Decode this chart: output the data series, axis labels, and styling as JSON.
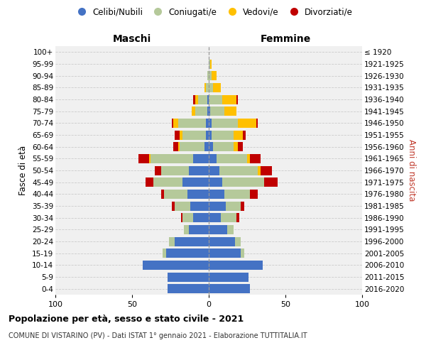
{
  "age_groups": [
    "0-4",
    "5-9",
    "10-14",
    "15-19",
    "20-24",
    "25-29",
    "30-34",
    "35-39",
    "40-44",
    "45-49",
    "50-54",
    "55-59",
    "60-64",
    "65-69",
    "70-74",
    "75-79",
    "80-84",
    "85-89",
    "90-94",
    "95-99",
    "100+"
  ],
  "birth_years": [
    "2016-2020",
    "2011-2015",
    "2006-2010",
    "2001-2005",
    "1996-2000",
    "1991-1995",
    "1986-1990",
    "1981-1985",
    "1976-1980",
    "1971-1975",
    "1966-1970",
    "1961-1965",
    "1956-1960",
    "1951-1955",
    "1946-1950",
    "1941-1945",
    "1936-1940",
    "1931-1935",
    "1926-1930",
    "1921-1925",
    "≤ 1920"
  ],
  "males": {
    "celibi": [
      27,
      27,
      43,
      28,
      22,
      13,
      10,
      12,
      14,
      17,
      13,
      10,
      3,
      2,
      2,
      1,
      1,
      0,
      0,
      0,
      0
    ],
    "coniugati": [
      0,
      0,
      0,
      2,
      4,
      3,
      7,
      10,
      15,
      19,
      18,
      28,
      16,
      15,
      18,
      8,
      6,
      2,
      1,
      0,
      0
    ],
    "vedovi": [
      0,
      0,
      0,
      0,
      0,
      0,
      0,
      0,
      0,
      0,
      0,
      1,
      1,
      2,
      3,
      2,
      2,
      1,
      0,
      0,
      0
    ],
    "divorziati": [
      0,
      0,
      0,
      0,
      0,
      0,
      1,
      2,
      2,
      5,
      4,
      7,
      3,
      3,
      1,
      0,
      1,
      0,
      0,
      0,
      0
    ]
  },
  "females": {
    "nubili": [
      27,
      26,
      35,
      21,
      17,
      12,
      8,
      11,
      10,
      9,
      7,
      5,
      3,
      2,
      2,
      1,
      0,
      0,
      0,
      0,
      0
    ],
    "coniugate": [
      0,
      0,
      0,
      2,
      4,
      4,
      10,
      10,
      17,
      27,
      25,
      20,
      13,
      14,
      17,
      9,
      9,
      3,
      2,
      1,
      0
    ],
    "vedove": [
      0,
      0,
      0,
      0,
      0,
      0,
      0,
      0,
      0,
      0,
      2,
      2,
      3,
      6,
      12,
      8,
      9,
      5,
      3,
      1,
      0
    ],
    "divorziate": [
      0,
      0,
      0,
      0,
      0,
      0,
      2,
      2,
      5,
      9,
      7,
      7,
      3,
      2,
      1,
      0,
      1,
      0,
      0,
      0,
      0
    ]
  },
  "colors": {
    "celibi": "#4472c4",
    "coniugati": "#b5c99a",
    "vedovi": "#ffc000",
    "divorziati": "#c00000"
  },
  "xlim": [
    -100,
    100
  ],
  "xticks": [
    -100,
    -50,
    0,
    50,
    100
  ],
  "xticklabels": [
    "100",
    "50",
    "0",
    "50",
    "100"
  ],
  "title1": "Popolazione per età, sesso e stato civile - 2021",
  "title2": "COMUNE DI VISTARINO (PV) - Dati ISTAT 1° gennaio 2021 - Elaborazione TUTTITALIA.IT",
  "label_maschi": "Maschi",
  "label_femmine": "Femmine",
  "label_fasce": "Fasce di età",
  "label_anni": "Anni di nascita",
  "legend_labels": [
    "Celibi/Nubili",
    "Coniugati/e",
    "Vedovi/e",
    "Divorziati/e"
  ],
  "bg_color": "#f0f0f0"
}
